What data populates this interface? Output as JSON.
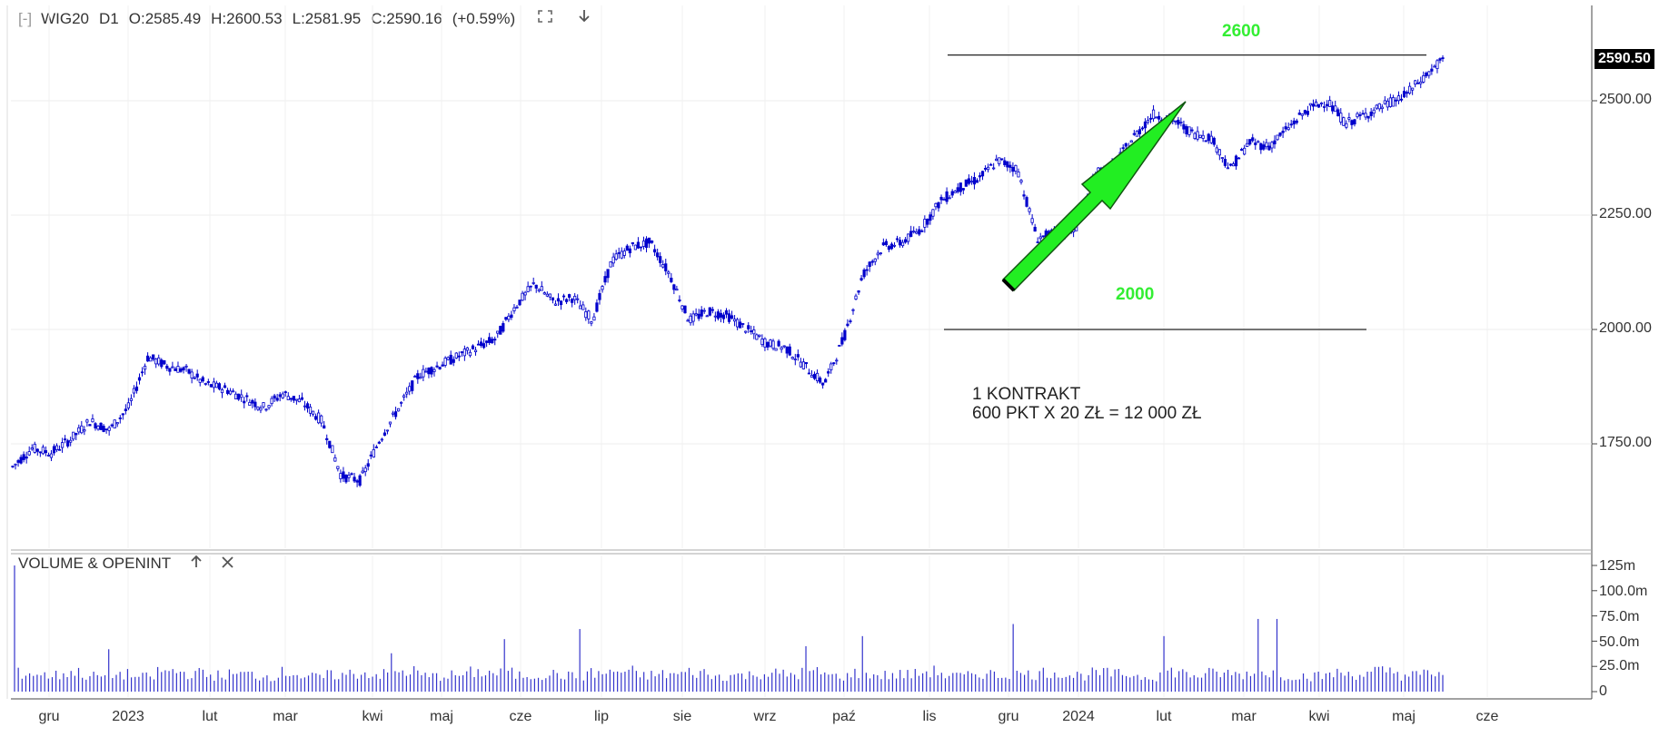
{
  "header": {
    "bracket": "[-]",
    "symbol": "WIG20",
    "interval": "D1",
    "open": "O:2585.49",
    "high": "H:2600.53",
    "low": "L:2581.95",
    "close": "C:2590.16",
    "change": "(+0.59%)",
    "icons": [
      "fullscreen-icon",
      "download-arrow-icon"
    ]
  },
  "last_price": "2590.50",
  "annotations": {
    "level_high_label": "2600",
    "level_low_label": "2000",
    "contract_line1": "1 KONTRAKT",
    "contract_line2": "600 PKT X 20 ZŁ = 12 000 ZŁ",
    "arrow_color": "#22ee22",
    "label_color": "#33ee33"
  },
  "volume_panel": {
    "title": "VOLUME & OPENINT",
    "icons": [
      "arrow-up-icon",
      "close-icon"
    ]
  },
  "colors": {
    "candles": "#0000cc",
    "volume": "#3333cc",
    "grid": "#eeeeee"
  },
  "chart_data": [
    {
      "type": "line",
      "title": "WIG20 D1",
      "y_axis_ticks": [
        "1750.00",
        "2000.00",
        "2250.00",
        "2500.00"
      ],
      "ylim": [
        1540,
        2660
      ],
      "x_axis_ticks": [
        "gru",
        "2023",
        "lut",
        "mar",
        "kwi",
        "maj",
        "cze",
        "lip",
        "sie",
        "wrz",
        "paź",
        "lis",
        "gru",
        "2024",
        "lut",
        "mar",
        "kwi",
        "maj",
        "cze"
      ],
      "series": [
        {
          "values": [
            1700,
            1740,
            1730,
            1760,
            1800,
            1780,
            1830,
            1940,
            1920,
            1910,
            1880,
            1870,
            1850,
            1830,
            1860,
            1840,
            1800,
            1680,
            1670,
            1760,
            1830,
            1900,
            1920,
            1940,
            1960,
            1980,
            2050,
            2100,
            2060,
            2070,
            2020,
            2150,
            2180,
            2190,
            2120,
            2020,
            2040,
            2030,
            2000,
            1970,
            1960,
            1920,
            1880,
            1980,
            2120,
            2180,
            2190,
            2220,
            2280,
            2310,
            2330,
            2370,
            2350,
            2200,
            2210,
            2220,
            2340,
            2360,
            2420,
            2470,
            2460,
            2430,
            2420,
            2350,
            2410,
            2400,
            2440,
            2480,
            2500,
            2450,
            2470,
            2490,
            2510,
            2550,
            2590
          ]
        }
      ],
      "horizontal_lines": [
        2600,
        2000
      ]
    },
    {
      "type": "bar",
      "title": "VOLUME & OPENINT",
      "y_axis_ticks": [
        "0",
        "25.0m",
        "50.0m",
        "75.0m",
        "100.0m",
        "125m"
      ],
      "ylim": [
        0,
        130
      ],
      "series": [
        {
          "values": [
            20,
            18,
            21,
            17,
            19,
            16,
            22,
            20,
            18,
            19,
            17,
            21,
            16,
            18,
            20,
            19,
            22,
            17,
            18,
            21,
            20,
            18,
            19,
            17,
            20,
            22,
            18,
            19,
            21,
            17,
            18,
            20,
            19,
            21,
            17,
            20,
            18,
            19,
            22,
            17,
            20,
            18,
            19,
            21,
            18,
            20,
            19,
            17,
            22,
            18,
            20,
            19,
            21,
            18,
            17,
            20,
            19,
            22,
            18,
            20
          ],
          "spikes": [
            {
              "index": 0,
              "value": 125
            },
            {
              "index": 5,
              "value": 42
            },
            {
              "index": 19,
              "value": 38
            },
            {
              "index": 25,
              "value": 52
            },
            {
              "index": 28,
              "value": 62
            },
            {
              "index": 40,
              "value": 45
            },
            {
              "index": 43,
              "value": 55
            },
            {
              "index": 50,
              "value": 67
            },
            {
              "index": 58,
              "value": 55
            },
            {
              "index": 63,
              "value": 72
            }
          ]
        }
      ]
    }
  ]
}
